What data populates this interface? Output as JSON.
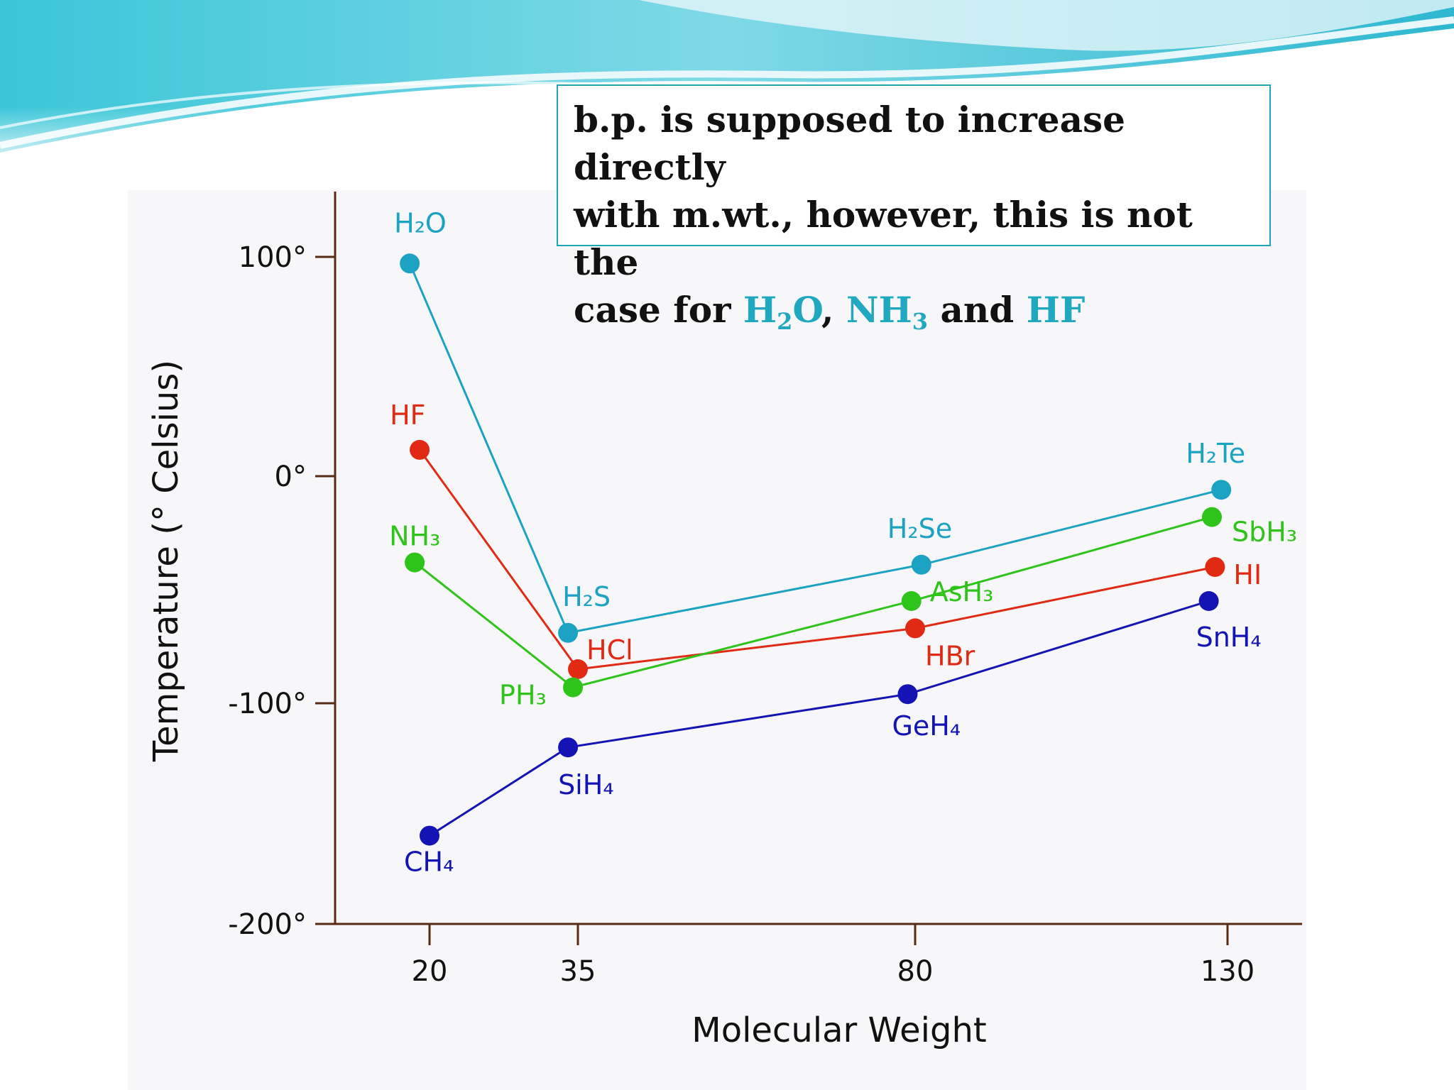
{
  "callout": {
    "line1": "b.p. is supposed to increase directly",
    "line2": "with m.wt., however, this is not the",
    "line3_prefix": "case for",
    "h2o_main": "H",
    "h2o_sub": "2",
    "h2o_tail": "O",
    "sep": ",",
    "nh3_main": "NH",
    "nh3_sub": "3",
    "conj": "and",
    "hf": "HF",
    "highlight_color": "#20a8c0"
  },
  "chart_data": {
    "type": "line",
    "title": "",
    "xlabel": "Molecular Weight",
    "ylabel": "Temperature (° Celsius)",
    "xticks": [
      {
        "value": 20,
        "label": "20"
      },
      {
        "value": 35,
        "label": "35"
      },
      {
        "value": 80,
        "label": "80"
      },
      {
        "value": 130,
        "label": "130"
      }
    ],
    "yticks": [
      {
        "value": 100,
        "label": "100°"
      },
      {
        "value": 0,
        "label": "0°"
      },
      {
        "value": -100,
        "label": "-100°"
      },
      {
        "value": -200,
        "label": "-200°"
      }
    ],
    "ylim": [
      -200,
      130
    ],
    "grid": false,
    "axis_color": "#5a2a12",
    "series": [
      {
        "color": "#1ca3c4",
        "points": [
          {
            "x": 18,
            "y": 97,
            "label": "H₂O"
          },
          {
            "x": 34,
            "y": -69,
            "label": "H₂S"
          },
          {
            "x": 81,
            "y": -39,
            "label": "H₂Se"
          },
          {
            "x": 129,
            "y": -6,
            "label": "H₂Te"
          }
        ]
      },
      {
        "color": "#e12a14",
        "points": [
          {
            "x": 19,
            "y": 12,
            "label": "HF"
          },
          {
            "x": 35,
            "y": -85,
            "label": "HCl"
          },
          {
            "x": 80,
            "y": -67,
            "label": "HBr"
          },
          {
            "x": 128,
            "y": -40,
            "label": "HI"
          }
        ]
      },
      {
        "color": "#2fc41a",
        "points": [
          {
            "x": 18.5,
            "y": -38,
            "label": "NH₃"
          },
          {
            "x": 34.5,
            "y": -93,
            "label": "PH₃"
          },
          {
            "x": 79.5,
            "y": -55,
            "label": "AsH₃"
          },
          {
            "x": 127.5,
            "y": -18,
            "label": "SbH₃"
          }
        ]
      },
      {
        "color": "#1414b4",
        "points": [
          {
            "x": 20,
            "y": -160,
            "label": "CH₄"
          },
          {
            "x": 34,
            "y": -120,
            "label": "SiH₄"
          },
          {
            "x": 79,
            "y": -96,
            "label": "GeH₄"
          },
          {
            "x": 127,
            "y": -55,
            "label": "SnH₄"
          }
        ]
      }
    ]
  }
}
